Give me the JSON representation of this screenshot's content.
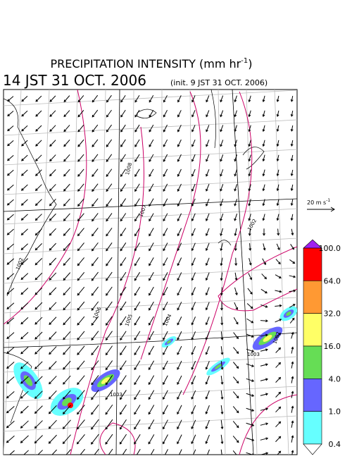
{
  "title": {
    "text": "PRECIPITATION INTENSITY (mm hr",
    "sup": "-1",
    "close": ")"
  },
  "subtitle": {
    "time": "14 JST 31 OCT. 2006",
    "init": "(init. 9 JST 31 OCT. 2006)"
  },
  "wind_scale": {
    "text": "20 m s",
    "sup": "-1"
  },
  "contour_labels": [
    "1008",
    "1007",
    "1002",
    "1002",
    "1006",
    "1005",
    "1004",
    "1003",
    "1003",
    "1002"
  ],
  "colorbar": {
    "labels": [
      "100.0",
      "64.0",
      "32.0",
      "16.0",
      "4.0",
      "1.0",
      "0.4"
    ],
    "colors": [
      "#a020f0",
      "#ff0000",
      "#ff9933",
      "#ffff66",
      "#66dd55",
      "#6666ff",
      "#66ffff",
      "#ffffff"
    ]
  }
}
